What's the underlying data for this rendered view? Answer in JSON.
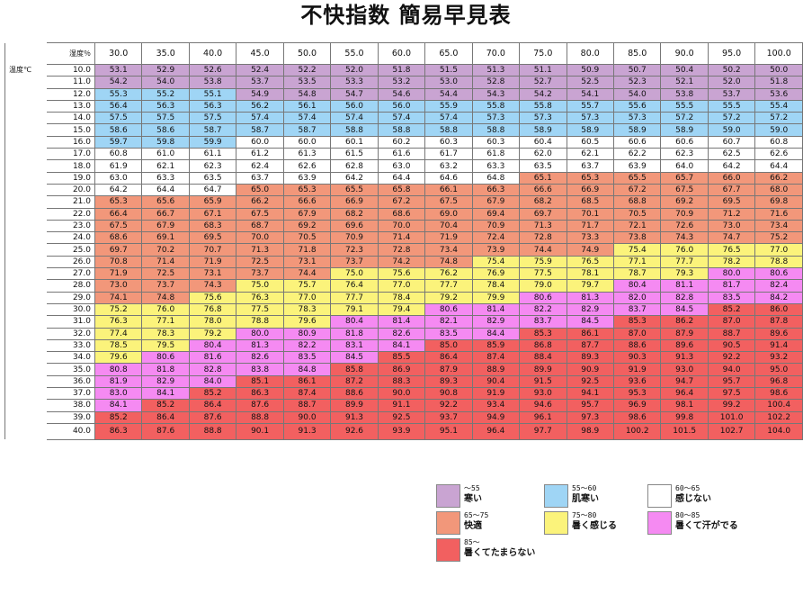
{
  "title": "不快指数 簡易早見表",
  "table": {
    "humidity_label": "湿度％",
    "temp_label": "温度℃",
    "humidity": [
      "30.0",
      "35.0",
      "40.0",
      "45.0",
      "50.0",
      "55.0",
      "60.0",
      "65.0",
      "70.0",
      "75.0",
      "80.0",
      "85.0",
      "90.0",
      "95.0",
      "100.0"
    ],
    "temps": [
      "10.0",
      "11.0",
      "12.0",
      "13.0",
      "14.0",
      "15.0",
      "16.0",
      "17.0",
      "18.0",
      "19.0",
      "20.0",
      "21.0",
      "22.0",
      "23.0",
      "24.0",
      "25.0",
      "26.0",
      "27.0",
      "28.0",
      "29.0",
      "30.0",
      "31.0",
      "32.0",
      "33.0",
      "34.0",
      "35.0",
      "36.0",
      "37.0",
      "38.0",
      "39.0",
      "40.0"
    ],
    "values": [
      [
        "53.1",
        "52.9",
        "52.6",
        "52.4",
        "52.2",
        "52.0",
        "51.8",
        "51.5",
        "51.3",
        "51.1",
        "50.9",
        "50.7",
        "50.4",
        "50.2",
        "50.0"
      ],
      [
        "54.2",
        "54.0",
        "53.8",
        "53.7",
        "53.5",
        "53.3",
        "53.2",
        "53.0",
        "52.8",
        "52.7",
        "52.5",
        "52.3",
        "52.1",
        "52.0",
        "51.8"
      ],
      [
        "55.3",
        "55.2",
        "55.1",
        "54.9",
        "54.8",
        "54.7",
        "54.6",
        "54.4",
        "54.3",
        "54.2",
        "54.1",
        "54.0",
        "53.8",
        "53.7",
        "53.6"
      ],
      [
        "56.4",
        "56.3",
        "56.3",
        "56.2",
        "56.1",
        "56.0",
        "56.0",
        "55.9",
        "55.8",
        "55.8",
        "55.7",
        "55.6",
        "55.5",
        "55.5",
        "55.4"
      ],
      [
        "57.5",
        "57.5",
        "57.5",
        "57.4",
        "57.4",
        "57.4",
        "57.4",
        "57.4",
        "57.3",
        "57.3",
        "57.3",
        "57.3",
        "57.2",
        "57.2",
        "57.2"
      ],
      [
        "58.6",
        "58.6",
        "58.7",
        "58.7",
        "58.7",
        "58.8",
        "58.8",
        "58.8",
        "58.8",
        "58.9",
        "58.9",
        "58.9",
        "58.9",
        "59.0",
        "59.0"
      ],
      [
        "59.7",
        "59.8",
        "59.9",
        "60.0",
        "60.0",
        "60.1",
        "60.2",
        "60.3",
        "60.3",
        "60.4",
        "60.5",
        "60.6",
        "60.6",
        "60.7",
        "60.8"
      ],
      [
        "60.8",
        "61.0",
        "61.1",
        "61.2",
        "61.3",
        "61.5",
        "61.6",
        "61.7",
        "61.8",
        "62.0",
        "62.1",
        "62.2",
        "62.3",
        "62.5",
        "62.6"
      ],
      [
        "61.9",
        "62.1",
        "62.3",
        "62.4",
        "62.6",
        "62.8",
        "63.0",
        "63.2",
        "63.3",
        "63.5",
        "63.7",
        "63.9",
        "64.0",
        "64.2",
        "64.4"
      ],
      [
        "63.0",
        "63.3",
        "63.5",
        "63.7",
        "63.9",
        "64.2",
        "64.4",
        "64.6",
        "64.8",
        "65.1",
        "65.3",
        "65.5",
        "65.7",
        "66.0",
        "66.2"
      ],
      [
        "64.2",
        "64.4",
        "64.7",
        "65.0",
        "65.3",
        "65.5",
        "65.8",
        "66.1",
        "66.3",
        "66.6",
        "66.9",
        "67.2",
        "67.5",
        "67.7",
        "68.0"
      ],
      [
        "65.3",
        "65.6",
        "65.9",
        "66.2",
        "66.6",
        "66.9",
        "67.2",
        "67.5",
        "67.9",
        "68.2",
        "68.5",
        "68.8",
        "69.2",
        "69.5",
        "69.8"
      ],
      [
        "66.4",
        "66.7",
        "67.1",
        "67.5",
        "67.9",
        "68.2",
        "68.6",
        "69.0",
        "69.4",
        "69.7",
        "70.1",
        "70.5",
        "70.9",
        "71.2",
        "71.6"
      ],
      [
        "67.5",
        "67.9",
        "68.3",
        "68.7",
        "69.2",
        "69.6",
        "70.0",
        "70.4",
        "70.9",
        "71.3",
        "71.7",
        "72.1",
        "72.6",
        "73.0",
        "73.4"
      ],
      [
        "68.6",
        "69.1",
        "69.5",
        "70.0",
        "70.5",
        "70.9",
        "71.4",
        "71.9",
        "72.4",
        "72.8",
        "73.3",
        "73.8",
        "74.3",
        "74.7",
        "75.2"
      ],
      [
        "69.7",
        "70.2",
        "70.7",
        "71.3",
        "71.8",
        "72.3",
        "72.8",
        "73.4",
        "73.9",
        "74.4",
        "74.9",
        "75.4",
        "76.0",
        "76.5",
        "77.0"
      ],
      [
        "70.8",
        "71.4",
        "71.9",
        "72.5",
        "73.1",
        "73.7",
        "74.2",
        "74.8",
        "75.4",
        "75.9",
        "76.5",
        "77.1",
        "77.7",
        "78.2",
        "78.8"
      ],
      [
        "71.9",
        "72.5",
        "73.1",
        "73.7",
        "74.4",
        "75.0",
        "75.6",
        "76.2",
        "76.9",
        "77.5",
        "78.1",
        "78.7",
        "79.3",
        "80.0",
        "80.6"
      ],
      [
        "73.0",
        "73.7",
        "74.3",
        "75.0",
        "75.7",
        "76.4",
        "77.0",
        "77.7",
        "78.4",
        "79.0",
        "79.7",
        "80.4",
        "81.1",
        "81.7",
        "82.4"
      ],
      [
        "74.1",
        "74.8",
        "75.6",
        "76.3",
        "77.0",
        "77.7",
        "78.4",
        "79.2",
        "79.9",
        "80.6",
        "81.3",
        "82.0",
        "82.8",
        "83.5",
        "84.2"
      ],
      [
        "75.2",
        "76.0",
        "76.8",
        "77.5",
        "78.3",
        "79.1",
        "79.4",
        "80.6",
        "81.4",
        "82.2",
        "82.9",
        "83.7",
        "84.5",
        "85.2",
        "86.0"
      ],
      [
        "76.3",
        "77.1",
        "78.0",
        "78.8",
        "79.6",
        "80.4",
        "81.4",
        "82.1",
        "82.9",
        "83.7",
        "84.5",
        "85.3",
        "86.2",
        "87.0",
        "87.8"
      ],
      [
        "77.4",
        "78.3",
        "79.2",
        "80.0",
        "80.9",
        "81.8",
        "82.6",
        "83.5",
        "84.4",
        "85.3",
        "86.1",
        "87.0",
        "87.9",
        "88.7",
        "89.6"
      ],
      [
        "78.5",
        "79.5",
        "80.4",
        "81.3",
        "82.2",
        "83.1",
        "84.1",
        "85.0",
        "85.9",
        "86.8",
        "87.7",
        "88.6",
        "89.6",
        "90.5",
        "91.4"
      ],
      [
        "79.6",
        "80.6",
        "81.6",
        "82.6",
        "83.5",
        "84.5",
        "85.5",
        "86.4",
        "87.4",
        "88.4",
        "89.3",
        "90.3",
        "91.3",
        "92.2",
        "93.2"
      ],
      [
        "80.8",
        "81.8",
        "82.8",
        "83.8",
        "84.8",
        "85.8",
        "86.9",
        "87.9",
        "88.9",
        "89.9",
        "90.9",
        "91.9",
        "93.0",
        "94.0",
        "95.0"
      ],
      [
        "81.9",
        "82.9",
        "84.0",
        "85.1",
        "86.1",
        "87.2",
        "88.3",
        "89.3",
        "90.4",
        "91.5",
        "92.5",
        "93.6",
        "94.7",
        "95.7",
        "96.8"
      ],
      [
        "83.0",
        "84.1",
        "85.2",
        "86.3",
        "87.4",
        "88.6",
        "90.0",
        "90.8",
        "91.9",
        "93.0",
        "94.1",
        "95.3",
        "96.4",
        "97.5",
        "98.6"
      ],
      [
        "84.1",
        "85.2",
        "86.4",
        "87.6",
        "88.7",
        "89.9",
        "91.1",
        "92.2",
        "93.4",
        "94.6",
        "95.7",
        "96.9",
        "98.1",
        "99.2",
        "100.4"
      ],
      [
        "85.2",
        "86.4",
        "87.6",
        "88.8",
        "90.0",
        "91.3",
        "92.5",
        "93.7",
        "94.9",
        "96.1",
        "97.3",
        "98.6",
        "99.8",
        "101.0",
        "102.2"
      ],
      [
        "86.3",
        "87.6",
        "88.8",
        "90.1",
        "91.3",
        "92.6",
        "93.9",
        "95.1",
        "96.4",
        "97.7",
        "98.9",
        "100.2",
        "101.5",
        "102.7",
        "104.0"
      ]
    ],
    "classes": [
      "111111111111111",
      "111111111111111",
      "222111111111111",
      "222222222222222",
      "222222222222222",
      "222222222222222",
      "222333333333333",
      "333333333333333",
      "333333333333333",
      "333333333444444",
      "333444444444444",
      "444444444444444",
      "444444444444444",
      "444444444444444",
      "444444444444444",
      "444444444445555",
      "444444445555555",
      "444445555555566",
      "444555555556666",
      "445555555666666",
      "555555566666677",
      "555556666667777",
      "555666666777777",
      "556666677777777",
      "566666777777777",
      "666667777777777",
      "666777777777777",
      "667777777777777",
      "677777777777777",
      "777777777777777",
      "777777777777777"
    ]
  },
  "legend": [
    {
      "range": "～55",
      "label": "寒い",
      "color": "#c9a4d2"
    },
    {
      "range": "55～60",
      "label": "肌寒い",
      "color": "#9fd5f5"
    },
    {
      "range": "60～65",
      "label": "感じない",
      "color": "#ffffff"
    },
    {
      "range": "65～75",
      "label": "快適",
      "color": "#f2977a"
    },
    {
      "range": "75～80",
      "label": "暑く感じる",
      "color": "#fbf37b"
    },
    {
      "range": "80～85",
      "label": "暑くて汗がでる",
      "color": "#f58af2"
    },
    {
      "range": "85～",
      "label": "暑くてたまらない",
      "color": "#f26060"
    }
  ]
}
